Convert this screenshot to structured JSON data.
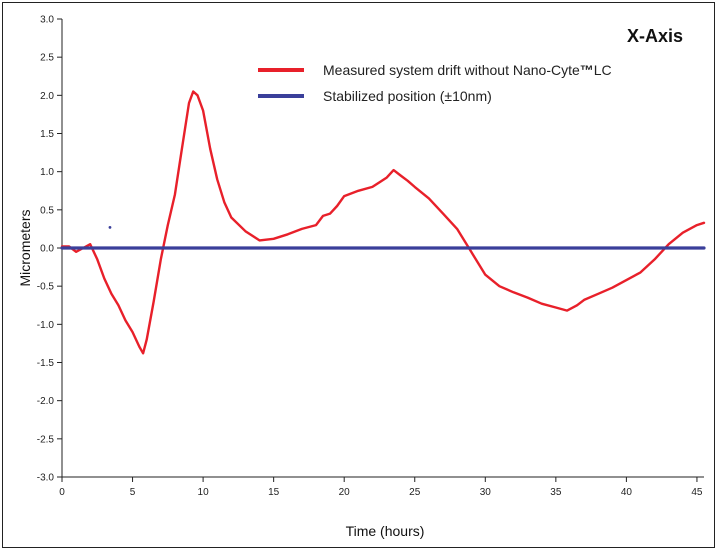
{
  "chart_data": {
    "type": "line",
    "title": "X-Axis",
    "xlabel": "Time (hours)",
    "ylabel": "Micrometers",
    "xlim": [
      0,
      45.5
    ],
    "ylim": [
      -3.0,
      3.0
    ],
    "x_ticks": [
      0,
      5,
      10,
      15,
      20,
      25,
      30,
      35,
      40,
      45
    ],
    "x_tick_labels": [
      "0",
      "5",
      "10",
      "15",
      "20",
      "25",
      "30",
      "35",
      "40",
      "45"
    ],
    "y_ticks": [
      3.0,
      2.5,
      2.0,
      1.5,
      1.0,
      0.5,
      0.0,
      -0.5,
      -1.0,
      -1.5,
      -2.0,
      -2.5,
      -3.0
    ],
    "y_tick_labels": [
      "3.0",
      "2.5",
      "2.0",
      "1.5",
      "1.0",
      "0.5",
      "0.0",
      "-0.5",
      "-1.0",
      "-1.5",
      "-2.0",
      "-2.5",
      "-3.0"
    ],
    "grid": false,
    "legend": {
      "placement": "top-right",
      "entries": [
        {
          "label_main": "Measured system drift without Nano-Cyte",
          "label_mark": "™",
          "label_tail": "LC",
          "color": "#e8202a"
        },
        {
          "label_main": "Stabilized position (±10nm)",
          "label_mark": "",
          "label_tail": "",
          "color": "#3a3f9a"
        }
      ]
    },
    "series": [
      {
        "color": "#e8202a",
        "x": [
          0,
          0.5,
          1.0,
          1.5,
          2.0,
          2.5,
          3.0,
          3.5,
          4.0,
          4.5,
          5.0,
          5.5,
          5.75,
          6.0,
          6.5,
          7.0,
          7.5,
          8.0,
          8.5,
          9.0,
          9.3,
          9.6,
          10.0,
          10.5,
          11.0,
          11.5,
          12.0,
          13.0,
          14.0,
          15.0,
          16.0,
          17.0,
          18.0,
          18.5,
          19.0,
          19.5,
          20.0,
          21.0,
          22.0,
          23.0,
          23.5,
          24.0,
          24.5,
          25.0,
          26.0,
          27.0,
          28.0,
          29.0,
          30.0,
          31.0,
          32.0,
          33.0,
          34.0,
          35.0,
          35.8,
          36.5,
          37.0,
          38.0,
          39.0,
          40.0,
          41.0,
          42.0,
          43.0,
          44.0,
          45.0,
          45.5
        ],
        "y": [
          0.02,
          0.02,
          -0.05,
          0.0,
          0.05,
          -0.15,
          -0.4,
          -0.6,
          -0.75,
          -0.95,
          -1.1,
          -1.3,
          -1.38,
          -1.2,
          -0.7,
          -0.15,
          0.3,
          0.7,
          1.3,
          1.9,
          2.05,
          2.0,
          1.8,
          1.3,
          0.9,
          0.6,
          0.4,
          0.22,
          0.1,
          0.12,
          0.18,
          0.25,
          0.3,
          0.42,
          0.45,
          0.55,
          0.68,
          0.75,
          0.8,
          0.92,
          1.02,
          0.95,
          0.88,
          0.8,
          0.65,
          0.45,
          0.25,
          -0.05,
          -0.35,
          -0.5,
          -0.58,
          -0.65,
          -0.73,
          -0.78,
          -0.82,
          -0.75,
          -0.68,
          -0.6,
          -0.52,
          -0.42,
          -0.32,
          -0.15,
          0.05,
          0.2,
          0.3,
          0.33
        ]
      },
      {
        "color": "#3a3f9a",
        "x": [
          0,
          45.5
        ],
        "y": [
          0.0,
          0.0
        ]
      }
    ],
    "annotations": [
      {
        "text": "",
        "x": 3.4,
        "y": 0.27,
        "type": "outlier-point",
        "color": "#3a3f9a"
      }
    ]
  }
}
